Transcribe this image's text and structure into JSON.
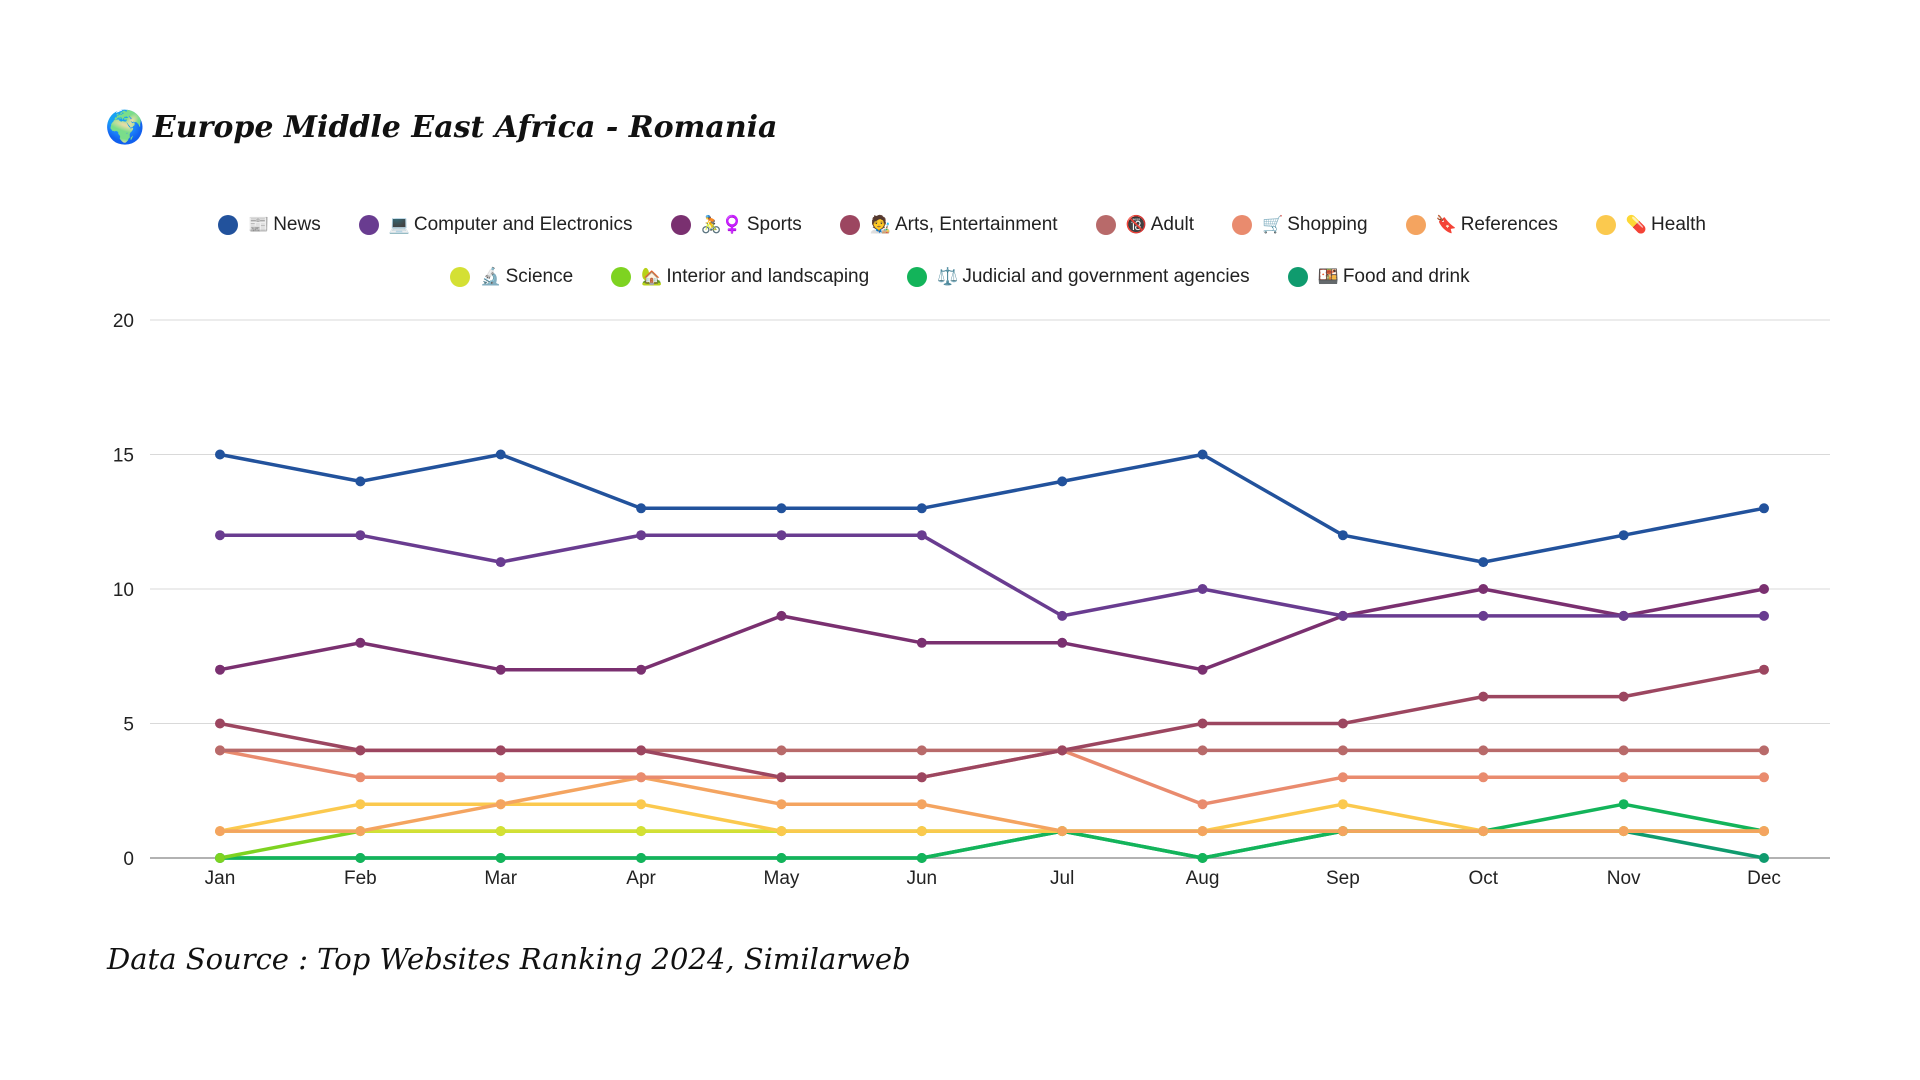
{
  "title": {
    "icon": "🌍",
    "text": "Europe Middle East Africa - Romania"
  },
  "source": "Data Source : Top Websites Ranking 2024, Similarweb",
  "chart_data": {
    "type": "line",
    "categories": [
      "Jan",
      "Feb",
      "Mar",
      "Apr",
      "May",
      "Jun",
      "Jul",
      "Aug",
      "Sep",
      "Oct",
      "Nov",
      "Dec"
    ],
    "ylim": [
      0,
      20
    ],
    "yticks": [
      0,
      5,
      10,
      15,
      20
    ],
    "grid": true,
    "legend_placement": "top-center",
    "series": [
      {
        "name": "News",
        "icon": "📰",
        "color": "#22529c",
        "values": [
          15,
          14,
          15,
          13,
          13,
          13,
          14,
          15,
          12,
          11,
          12,
          13
        ]
      },
      {
        "name": "Computer and Electronics",
        "icon": "💻",
        "color": "#693c90",
        "values": [
          12,
          12,
          11,
          12,
          12,
          12,
          9,
          10,
          9,
          9,
          9,
          9
        ]
      },
      {
        "name": "Sports",
        "icon": "🚴♀️",
        "color": "#7a3070",
        "values": [
          7,
          8,
          7,
          7,
          9,
          8,
          8,
          7,
          9,
          10,
          9,
          10
        ]
      },
      {
        "name": "Arts, Entertainment",
        "icon": "🧑‍🎨",
        "color": "#9c4660",
        "values": [
          5,
          4,
          4,
          4,
          3,
          3,
          4,
          5,
          5,
          6,
          6,
          7
        ]
      },
      {
        "name": "Adult",
        "icon": "🔞",
        "color": "#b86a6a",
        "values": [
          4,
          4,
          4,
          4,
          4,
          4,
          4,
          4,
          4,
          4,
          4,
          4
        ]
      },
      {
        "name": "Shopping",
        "icon": "🛒",
        "color": "#e98b6e",
        "values": [
          4,
          3,
          3,
          3,
          3,
          3,
          4,
          2,
          3,
          3,
          3,
          3
        ]
      },
      {
        "name": "References",
        "icon": "🔖",
        "color": "#f4a460",
        "values": [
          1,
          1,
          2,
          3,
          2,
          2,
          1,
          1,
          1,
          1,
          1,
          1
        ]
      },
      {
        "name": "Health",
        "icon": "💊",
        "color": "#fbc94e",
        "values": [
          1,
          2,
          2,
          2,
          1,
          1,
          1,
          1,
          2,
          1,
          1,
          1
        ]
      },
      {
        "name": "Science",
        "icon": "🔬",
        "color": "#d4e034",
        "values": [
          1,
          1,
          1,
          1,
          1,
          1,
          1,
          1,
          1,
          1,
          1,
          1
        ]
      },
      {
        "name": "Interior and landscaping",
        "icon": "🏡",
        "color": "#7ed321",
        "values": [
          0,
          1,
          1,
          1,
          1,
          1,
          1,
          1,
          1,
          1,
          1,
          1
        ]
      },
      {
        "name": "Judicial and government agencies",
        "icon": "⚖️",
        "color": "#13b45a",
        "values": [
          0,
          0,
          0,
          0,
          0,
          0,
          1,
          0,
          1,
          1,
          2,
          1
        ]
      },
      {
        "name": "Food and drink",
        "icon": "🍱",
        "color": "#0f9b6e",
        "values": [
          0,
          0,
          0,
          0,
          0,
          0,
          1,
          0,
          1,
          1,
          1,
          0
        ]
      }
    ]
  }
}
